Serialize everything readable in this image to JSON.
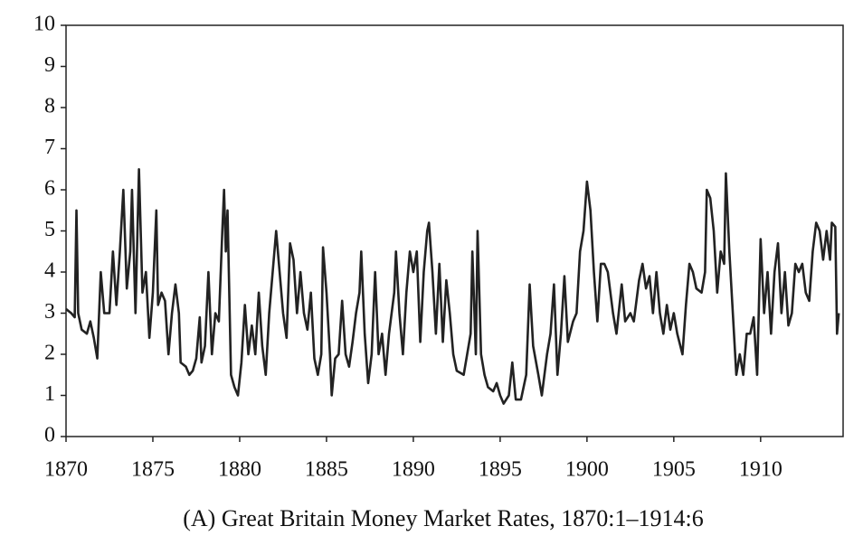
{
  "chart_data": {
    "type": "line",
    "title": "(A) Great Britain Money Market Rates, 1870:1–1914:6",
    "color": "#222222",
    "x": [
      1870.0,
      1870.3,
      1870.5,
      1870.6,
      1870.7,
      1870.9,
      1871.2,
      1871.4,
      1871.6,
      1871.8,
      1872.0,
      1872.2,
      1872.5,
      1872.7,
      1872.9,
      1873.1,
      1873.3,
      1873.5,
      1873.7,
      1873.8,
      1874.0,
      1874.2,
      1874.4,
      1874.6,
      1874.8,
      1875.0,
      1875.2,
      1875.3,
      1875.5,
      1875.7,
      1875.9,
      1876.1,
      1876.3,
      1876.5,
      1876.6,
      1876.9,
      1877.1,
      1877.3,
      1877.5,
      1877.7,
      1877.8,
      1878.0,
      1878.2,
      1878.4,
      1878.6,
      1878.8,
      1879.0,
      1879.1,
      1879.2,
      1879.3,
      1879.5,
      1879.7,
      1879.9,
      1880.1,
      1880.3,
      1880.5,
      1880.7,
      1880.9,
      1881.1,
      1881.3,
      1881.5,
      1881.7,
      1881.9,
      1882.1,
      1882.3,
      1882.5,
      1882.7,
      1882.9,
      1883.1,
      1883.3,
      1883.5,
      1883.7,
      1883.9,
      1884.1,
      1884.3,
      1884.5,
      1884.7,
      1884.8,
      1885.0,
      1885.2,
      1885.3,
      1885.5,
      1885.7,
      1885.9,
      1886.1,
      1886.3,
      1886.5,
      1886.7,
      1886.9,
      1887.0,
      1887.2,
      1887.4,
      1887.6,
      1887.8,
      1888.0,
      1888.2,
      1888.4,
      1888.6,
      1888.9,
      1889.0,
      1889.2,
      1889.4,
      1889.6,
      1889.8,
      1890.0,
      1890.2,
      1890.4,
      1890.6,
      1890.8,
      1890.9,
      1891.1,
      1891.3,
      1891.5,
      1891.7,
      1891.9,
      1892.1,
      1892.3,
      1892.5,
      1892.9,
      1893.1,
      1893.3,
      1893.4,
      1893.6,
      1893.7,
      1893.9,
      1894.1,
      1894.3,
      1894.6,
      1894.8,
      1895.0,
      1895.2,
      1895.5,
      1895.7,
      1895.9,
      1896.2,
      1896.5,
      1896.7,
      1896.9,
      1897.2,
      1897.4,
      1897.7,
      1897.9,
      1898.1,
      1898.3,
      1898.5,
      1898.7,
      1898.9,
      1899.2,
      1899.4,
      1899.6,
      1899.8,
      1900.0,
      1900.2,
      1900.4,
      1900.6,
      1900.8,
      1901.0,
      1901.2,
      1901.5,
      1901.7,
      1902.0,
      1902.2,
      1902.5,
      1902.7,
      1903.0,
      1903.2,
      1903.4,
      1903.6,
      1903.8,
      1904.0,
      1904.2,
      1904.4,
      1904.6,
      1904.8,
      1905.0,
      1905.2,
      1905.5,
      1905.7,
      1905.9,
      1906.1,
      1906.3,
      1906.6,
      1906.8,
      1906.9,
      1907.1,
      1907.3,
      1907.5,
      1907.7,
      1907.9,
      1908.0,
      1908.2,
      1908.4,
      1908.6,
      1908.8,
      1909.0,
      1909.2,
      1909.4,
      1909.6,
      1909.8,
      1910.0,
      1910.2,
      1910.4,
      1910.6,
      1910.8,
      1911.0,
      1911.2,
      1911.4,
      1911.6,
      1911.8,
      1912.0,
      1912.2,
      1912.4,
      1912.6,
      1912.8,
      1913.0,
      1913.2,
      1913.4,
      1913.6,
      1913.8,
      1914.0,
      1914.1,
      1914.3,
      1914.4,
      1914.5
    ],
    "values": [
      3.1,
      3.0,
      2.9,
      5.5,
      3.0,
      2.6,
      2.5,
      2.8,
      2.4,
      1.9,
      4.0,
      3.0,
      3.0,
      4.5,
      3.2,
      4.5,
      6.0,
      3.6,
      4.5,
      6.0,
      3.0,
      6.5,
      3.5,
      4.0,
      2.4,
      3.5,
      5.5,
      3.2,
      3.5,
      3.3,
      2.0,
      3.0,
      3.7,
      3.0,
      1.8,
      1.7,
      1.5,
      1.6,
      1.9,
      2.9,
      1.8,
      2.2,
      4.0,
      2.0,
      3.0,
      2.8,
      5.0,
      6.0,
      4.5,
      5.5,
      1.5,
      1.2,
      1.0,
      1.8,
      3.2,
      2.0,
      2.7,
      2.0,
      3.5,
      2.2,
      1.5,
      3.0,
      4.0,
      5.0,
      4.0,
      3.0,
      2.4,
      4.7,
      4.3,
      3.0,
      4.0,
      3.0,
      2.6,
      3.5,
      1.9,
      1.5,
      2.0,
      4.6,
      3.5,
      2.0,
      1.0,
      1.9,
      2.0,
      3.3,
      2.0,
      1.7,
      2.3,
      3.0,
      3.5,
      4.5,
      2.5,
      1.3,
      2.0,
      4.0,
      2.0,
      2.5,
      1.5,
      2.5,
      3.5,
      4.5,
      3.0,
      2.0,
      3.5,
      4.5,
      4.0,
      4.5,
      2.3,
      4.0,
      5.0,
      5.2,
      4.0,
      2.5,
      4.2,
      2.3,
      3.8,
      3.0,
      2.0,
      1.6,
      1.5,
      2.0,
      2.5,
      4.5,
      2.0,
      5.0,
      2.0,
      1.5,
      1.2,
      1.1,
      1.3,
      1.0,
      0.8,
      1.0,
      1.8,
      0.9,
      0.9,
      1.5,
      3.7,
      2.2,
      1.5,
      1.0,
      2.0,
      2.5,
      3.7,
      1.5,
      2.5,
      3.9,
      2.3,
      2.8,
      3.0,
      4.5,
      5.0,
      6.2,
      5.5,
      4.0,
      2.8,
      4.2,
      4.2,
      4.0,
      3.0,
      2.5,
      3.7,
      2.8,
      3.0,
      2.8,
      3.8,
      4.2,
      3.6,
      3.9,
      3.0,
      4.0,
      3.0,
      2.5,
      3.2,
      2.6,
      3.0,
      2.5,
      2.0,
      3.2,
      4.2,
      4.0,
      3.6,
      3.5,
      4.0,
      6.0,
      5.8,
      5.0,
      3.5,
      4.5,
      4.2,
      6.4,
      4.5,
      3.0,
      1.5,
      2.0,
      1.5,
      2.5,
      2.5,
      2.9,
      1.5,
      4.8,
      3.0,
      4.0,
      2.5,
      4.0,
      4.7,
      3.0,
      4.0,
      2.7,
      3.0,
      4.2,
      4.0,
      4.2,
      3.5,
      3.3,
      4.5,
      5.2,
      5.0,
      4.3,
      5.0,
      4.3,
      5.2,
      5.1,
      2.5,
      3.0
    ],
    "xlim": [
      1870,
      1914.75
    ],
    "xticks": [
      1870,
      1875,
      1880,
      1885,
      1890,
      1895,
      1900,
      1905,
      1910
    ],
    "ylim": [
      0,
      10
    ],
    "yticks": [
      0,
      1,
      2,
      3,
      4,
      5,
      6,
      7,
      8,
      9,
      10
    ]
  }
}
